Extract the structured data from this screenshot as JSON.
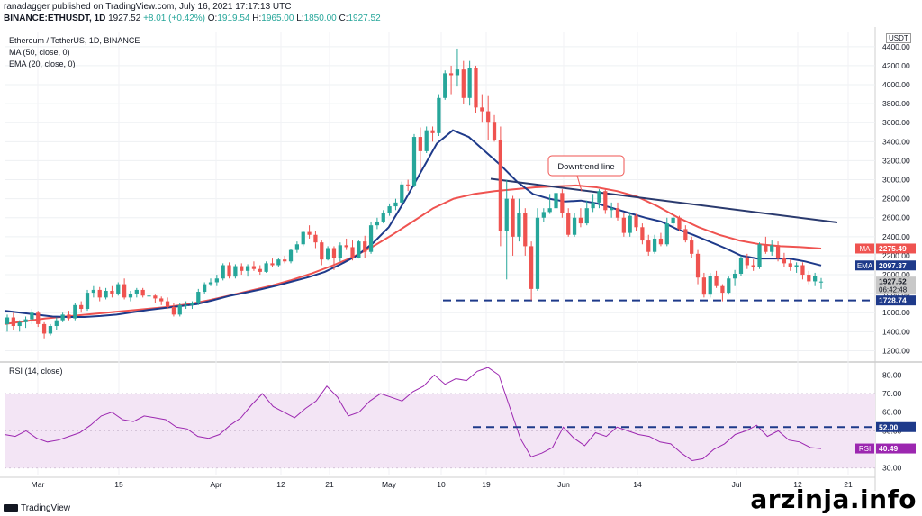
{
  "header": {
    "line1": "ranadagger published on TradingView.com, July 16, 2021 17:17:13 UTC",
    "symbol": "BINANCE:ETHUSDT, 1D",
    "price": "1927.52",
    "change": "+8.01 (+0.42%)",
    "ohlc_o_label": "O:",
    "ohlc_o": "1919.54",
    "ohlc_h_label": "H:",
    "ohlc_h": "1965.00",
    "ohlc_l_label": "L:",
    "ohlc_l": "1850.00",
    "ohlc_c_label": "C:",
    "ohlc_c": "1927.52"
  },
  "legend": {
    "title": "Ethereum / TetherUS, 1D, BINANCE",
    "ma": "MA (50, close, 0)",
    "ema": "EMA (20, close, 0)",
    "rsi": "RSI (14, close)"
  },
  "annotations": {
    "downtrend": "Downtrend line",
    "currency": "USDT"
  },
  "price_tags": [
    {
      "label": "MA",
      "value": "2275.49",
      "color": "#ef5350"
    },
    {
      "label": "EMA",
      "value": "2097.37",
      "color": "#1e3a8a"
    },
    {
      "label": "",
      "value": "1927.52",
      "value2": "06:42:48",
      "color": "#c8c8c8"
    },
    {
      "label": "",
      "value": "1728.74",
      "color": "#1e3a8a"
    }
  ],
  "rsi_tags": [
    {
      "label": "",
      "value": "52.00",
      "color": "#1e3a8a"
    },
    {
      "label": "RSI",
      "value": "40.49",
      "color": "#9c27b0"
    }
  ],
  "branding": {
    "tradingview": "TradingView",
    "watermark": "arzinja.info"
  },
  "colors": {
    "up": "#26a69a",
    "down": "#ef5350",
    "ma": "#ef5350",
    "ema": "#1e3a8a",
    "rsi": "#9c27b0",
    "rsi_band": "#f3e5f5",
    "level": "#1e3a8a"
  },
  "chart_data": [
    {
      "type": "candlestick",
      "title": "Ethereum / TetherUS, 1D, BINANCE",
      "x_ticks": [
        "Mar",
        "15",
        "Apr",
        "12",
        "21",
        "May",
        "10",
        "19",
        "Jun",
        "14",
        "Jul",
        "12",
        "21"
      ],
      "y_ticks": [
        1200,
        1400,
        1600,
        1800,
        2000,
        2200,
        2400,
        2600,
        2800,
        3000,
        3200,
        3400,
        3600,
        3800,
        4000,
        4200,
        4400
      ],
      "ylim": [
        1100,
        4550
      ],
      "candles": [
        [
          1480,
          1580,
          1400,
          1550
        ],
        [
          1550,
          1600,
          1420,
          1460
        ],
        [
          1460,
          1520,
          1400,
          1500
        ],
        [
          1500,
          1560,
          1440,
          1530
        ],
        [
          1530,
          1640,
          1480,
          1600
        ],
        [
          1600,
          1620,
          1450,
          1480
        ],
        [
          1480,
          1500,
          1330,
          1380
        ],
        [
          1380,
          1480,
          1360,
          1460
        ],
        [
          1460,
          1550,
          1420,
          1520
        ],
        [
          1520,
          1600,
          1500,
          1580
        ],
        [
          1580,
          1620,
          1520,
          1540
        ],
        [
          1540,
          1700,
          1520,
          1680
        ],
        [
          1680,
          1720,
          1600,
          1640
        ],
        [
          1640,
          1840,
          1620,
          1810
        ],
        [
          1810,
          1880,
          1760,
          1840
        ],
        [
          1840,
          1870,
          1720,
          1760
        ],
        [
          1760,
          1860,
          1740,
          1830
        ],
        [
          1830,
          1880,
          1760,
          1800
        ],
        [
          1800,
          1920,
          1780,
          1900
        ],
        [
          1900,
          1960,
          1740,
          1760
        ],
        [
          1760,
          1830,
          1720,
          1800
        ],
        [
          1800,
          1860,
          1760,
          1840
        ],
        [
          1840,
          1860,
          1760,
          1780
        ],
        [
          1780,
          1800,
          1700,
          1780
        ],
        [
          1780,
          1790,
          1700,
          1750
        ],
        [
          1750,
          1770,
          1680,
          1720
        ],
        [
          1720,
          1760,
          1640,
          1660
        ],
        [
          1660,
          1700,
          1560,
          1580
        ],
        [
          1580,
          1700,
          1560,
          1680
        ],
        [
          1680,
          1720,
          1640,
          1680
        ],
        [
          1680,
          1720,
          1640,
          1700
        ],
        [
          1700,
          1850,
          1680,
          1820
        ],
        [
          1820,
          1920,
          1800,
          1900
        ],
        [
          1900,
          1960,
          1880,
          1920
        ],
        [
          1920,
          2000,
          1880,
          1960
        ],
        [
          1960,
          2120,
          1940,
          2100
        ],
        [
          2100,
          2130,
          1960,
          1980
        ],
        [
          1980,
          2110,
          1960,
          2090
        ],
        [
          2090,
          2120,
          2000,
          2040
        ],
        [
          2040,
          2110,
          1980,
          2090
        ],
        [
          2090,
          2140,
          2040,
          2060
        ],
        [
          2060,
          2100,
          2000,
          2030
        ],
        [
          2030,
          2140,
          2020,
          2120
        ],
        [
          2120,
          2170,
          2080,
          2100
        ],
        [
          2100,
          2180,
          2080,
          2160
        ],
        [
          2160,
          2200,
          2120,
          2140
        ],
        [
          2140,
          2270,
          2120,
          2260
        ],
        [
          2260,
          2350,
          2230,
          2320
        ],
        [
          2320,
          2460,
          2300,
          2450
        ],
        [
          2450,
          2520,
          2380,
          2420
        ],
        [
          2420,
          2460,
          2280,
          2340
        ],
        [
          2340,
          2360,
          2100,
          2160
        ],
        [
          2160,
          2300,
          2150,
          2280
        ],
        [
          2280,
          2300,
          2050,
          2180
        ],
        [
          2180,
          2340,
          2140,
          2310
        ],
        [
          2310,
          2380,
          2260,
          2290
        ],
        [
          2290,
          2360,
          2150,
          2180
        ],
        [
          2180,
          2360,
          2170,
          2350
        ],
        [
          2350,
          2410,
          2180,
          2240
        ],
        [
          2240,
          2560,
          2220,
          2520
        ],
        [
          2520,
          2600,
          2480,
          2560
        ],
        [
          2560,
          2680,
          2540,
          2650
        ],
        [
          2650,
          2750,
          2620,
          2720
        ],
        [
          2720,
          2800,
          2680,
          2760
        ],
        [
          2760,
          2980,
          2740,
          2950
        ],
        [
          2950,
          3000,
          2880,
          2940
        ],
        [
          2940,
          3480,
          2920,
          3450
        ],
        [
          3450,
          3550,
          3100,
          3300
        ],
        [
          3300,
          3560,
          3280,
          3520
        ],
        [
          3520,
          3560,
          3400,
          3490
        ],
        [
          3490,
          3900,
          3460,
          3860
        ],
        [
          3860,
          4150,
          3840,
          4120
        ],
        [
          4120,
          4200,
          3900,
          4100
        ],
        [
          4100,
          4380,
          3980,
          4160
        ],
        [
          4160,
          4250,
          3800,
          3860
        ],
        [
          3860,
          4250,
          3780,
          4180
        ],
        [
          4180,
          4200,
          3700,
          3760
        ],
        [
          3760,
          3900,
          3600,
          3720
        ],
        [
          3720,
          3880,
          3420,
          3600
        ],
        [
          3600,
          3680,
          3400,
          3420
        ],
        [
          3420,
          3560,
          2300,
          2460
        ],
        [
          2460,
          3000,
          1950,
          2800
        ],
        [
          2800,
          2830,
          2200,
          2400
        ],
        [
          2400,
          2800,
          2350,
          2650
        ],
        [
          2650,
          2700,
          2200,
          2300
        ],
        [
          2300,
          2350,
          1730,
          1850
        ],
        [
          1850,
          2700,
          1830,
          2600
        ],
        [
          2600,
          2700,
          2550,
          2660
        ],
        [
          2660,
          2850,
          2640,
          2700
        ],
        [
          2700,
          2880,
          2660,
          2860
        ],
        [
          2860,
          2900,
          2600,
          2650
        ],
        [
          2650,
          2700,
          2400,
          2420
        ],
        [
          2420,
          2650,
          2400,
          2600
        ],
        [
          2600,
          2700,
          2500,
          2540
        ],
        [
          2540,
          2780,
          2520,
          2700
        ],
        [
          2700,
          2850,
          2660,
          2760
        ],
        [
          2760,
          2900,
          2700,
          2880
        ],
        [
          2880,
          2900,
          2640,
          2680
        ],
        [
          2680,
          2760,
          2600,
          2700
        ],
        [
          2700,
          2760,
          2570,
          2600
        ],
        [
          2600,
          2650,
          2400,
          2440
        ],
        [
          2440,
          2660,
          2400,
          2620
        ],
        [
          2620,
          2640,
          2460,
          2500
        ],
        [
          2500,
          2540,
          2320,
          2360
        ],
        [
          2360,
          2420,
          2200,
          2240
        ],
        [
          2240,
          2420,
          2220,
          2380
        ],
        [
          2380,
          2440,
          2300,
          2320
        ],
        [
          2320,
          2600,
          2300,
          2540
        ],
        [
          2540,
          2620,
          2480,
          2600
        ],
        [
          2600,
          2620,
          2460,
          2480
        ],
        [
          2480,
          2520,
          2340,
          2360
        ],
        [
          2360,
          2400,
          2180,
          2220
        ],
        [
          2220,
          2260,
          1900,
          1970
        ],
        [
          1970,
          2020,
          1760,
          1790
        ],
        [
          1790,
          2020,
          1760,
          1990
        ],
        [
          1990,
          2040,
          1860,
          1880
        ],
        [
          1880,
          1900,
          1720,
          1810
        ],
        [
          1810,
          1980,
          1790,
          1960
        ],
        [
          1960,
          2050,
          1880,
          2010
        ],
        [
          2010,
          2200,
          1990,
          2180
        ],
        [
          2180,
          2220,
          2060,
          2100
        ],
        [
          2100,
          2160,
          2040,
          2080
        ],
        [
          2080,
          2340,
          2060,
          2320
        ],
        [
          2320,
          2400,
          2220,
          2240
        ],
        [
          2240,
          2360,
          2200,
          2310
        ],
        [
          2310,
          2350,
          2140,
          2170
        ],
        [
          2170,
          2230,
          2080,
          2120
        ],
        [
          2120,
          2160,
          2040,
          2080
        ],
        [
          2080,
          2130,
          2020,
          2100
        ],
        [
          2100,
          2130,
          1950,
          2000
        ],
        [
          2000,
          2040,
          1900,
          1930
        ],
        [
          1930,
          2020,
          1880,
          1990
        ],
        [
          1919.54,
          1965,
          1850,
          1927.52
        ]
      ],
      "ema20": [
        1620,
        1600,
        1580,
        1560,
        1555,
        1555,
        1565,
        1580,
        1605,
        1630,
        1650,
        1670,
        1690,
        1730,
        1775,
        1810,
        1845,
        1885,
        1930,
        1975,
        2030,
        2110,
        2200,
        2330,
        2500,
        2780,
        3080,
        3380,
        3520,
        3450,
        3300,
        3150,
        2980,
        2850,
        2800,
        2770,
        2780,
        2750,
        2700,
        2650,
        2600,
        2560,
        2480,
        2420,
        2350,
        2280,
        2200,
        2170,
        2170,
        2170,
        2140,
        2097
      ],
      "ma50": [
        1480,
        1510,
        1540,
        1560,
        1580,
        1600,
        1620,
        1640,
        1660,
        1690,
        1730,
        1780,
        1830,
        1880,
        1940,
        2010,
        2090,
        2180,
        2290,
        2420,
        2560,
        2700,
        2800,
        2850,
        2880,
        2900,
        2920,
        2930,
        2940,
        2920,
        2880,
        2820,
        2720,
        2600,
        2500,
        2420,
        2360,
        2320,
        2300,
        2290,
        2275
      ],
      "downtrend_line": [
        [
          3010,
          2550
        ]
      ],
      "support_level": 1728.74,
      "price_labels": {
        "ma": 2275.49,
        "ema": 2097.37,
        "last": 1927.52,
        "support": 1728.74
      }
    },
    {
      "type": "line",
      "title": "RSI (14, close)",
      "y_ticks": [
        30,
        40,
        50,
        60,
        70,
        80
      ],
      "ylim": [
        26,
        86
      ],
      "band": [
        30,
        70
      ],
      "level": 52,
      "series": [
        {
          "name": "RSI (14, close)",
          "values": [
            48,
            47,
            50,
            46,
            44,
            45,
            47,
            49,
            53,
            58,
            60,
            56,
            55,
            58,
            57,
            56,
            52,
            51,
            47,
            46,
            48,
            53,
            57,
            64,
            70,
            63,
            60,
            57,
            62,
            66,
            74,
            68,
            58,
            60,
            66,
            70,
            68,
            66,
            71,
            74,
            80,
            75,
            78,
            77,
            82,
            84,
            80,
            63,
            46,
            36,
            38,
            41,
            52,
            46,
            42,
            49,
            47,
            52,
            50,
            48,
            47,
            44,
            43,
            38,
            34,
            35,
            40,
            43,
            48,
            50,
            53,
            47,
            50,
            45,
            44,
            41,
            40.49
          ]
        }
      ]
    }
  ]
}
